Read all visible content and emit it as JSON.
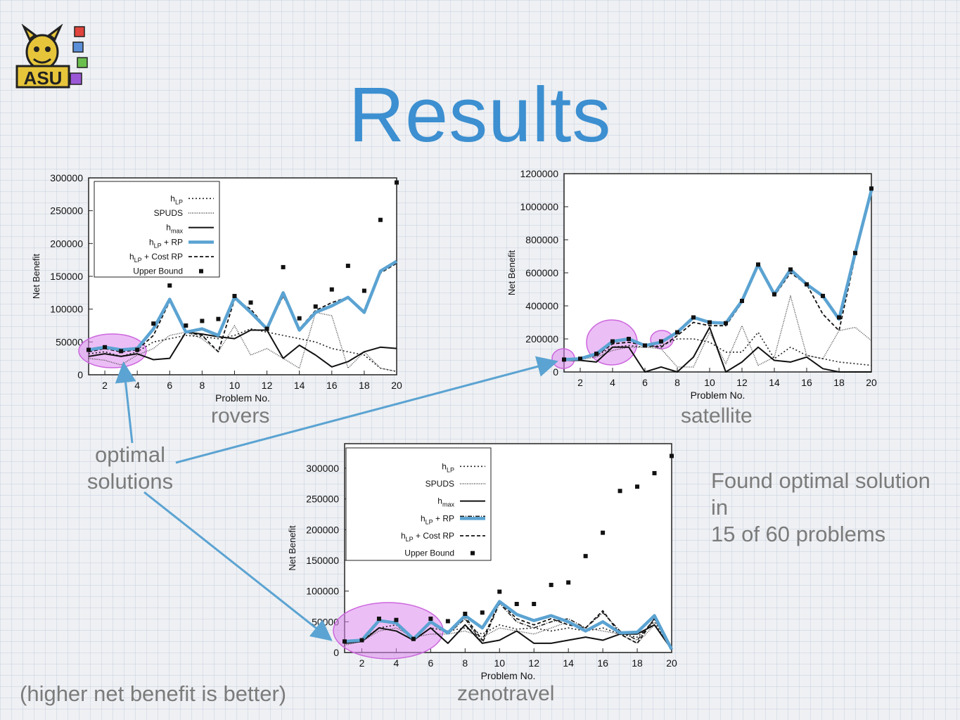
{
  "title": "Results",
  "captions": {
    "rovers": "rovers",
    "satellite": "satellite",
    "zenotravel": "zenotravel"
  },
  "notes": {
    "optimal_line1": "optimal",
    "optimal_line2": "solutions",
    "found_line1": "Found optimal solution",
    "found_line2": "in",
    "found_line3": "15 of 60 problems",
    "footer": "(higher net benefit is better)"
  },
  "logo": {
    "text": "ASU",
    "icon": "asu-sparky-logo-icon"
  },
  "colors": {
    "title": "#3c8fd0",
    "hlp_rp_series": "#5ba3d2",
    "highlight": "#dd88ee",
    "arrow": "#5ba3d2",
    "text_gray": "#7b7b7b"
  },
  "chart_data": [
    {
      "id": "rovers",
      "type": "line",
      "xlabel": "Problem No.",
      "ylabel": "Net Benefit",
      "xlim": [
        1,
        20
      ],
      "ylim": [
        0,
        300000
      ],
      "xticks": [
        2,
        4,
        6,
        8,
        10,
        12,
        14,
        16,
        18,
        20
      ],
      "yticks": [
        0,
        50000,
        100000,
        150000,
        200000,
        250000,
        300000
      ],
      "x": [
        1,
        2,
        3,
        4,
        5,
        6,
        7,
        8,
        9,
        10,
        11,
        12,
        13,
        14,
        15,
        16,
        17,
        18,
        19,
        20
      ],
      "legend": [
        "hLP",
        "SPUDS",
        "hmax",
        "hLP + RP",
        "hLP + Cost RP",
        "Upper Bound"
      ],
      "series": [
        {
          "name": "hLP",
          "style": "dotted",
          "values": [
            32000,
            35000,
            28000,
            35000,
            50000,
            55000,
            60000,
            58000,
            55000,
            60000,
            70000,
            65000,
            60000,
            55000,
            50000,
            40000,
            35000,
            30000,
            10000,
            5000
          ]
        },
        {
          "name": "SPUDS",
          "style": "finedot",
          "values": [
            25000,
            22000,
            15000,
            30000,
            40000,
            60000,
            65000,
            55000,
            35000,
            75000,
            30000,
            40000,
            25000,
            10000,
            95000,
            90000,
            10000,
            35000,
            10000,
            5000
          ]
        },
        {
          "name": "hmax",
          "style": "solid",
          "values": [
            28000,
            32000,
            28000,
            32000,
            23000,
            25000,
            65000,
            62000,
            58000,
            55000,
            68000,
            68000,
            25000,
            45000,
            30000,
            12000,
            20000,
            35000,
            42000,
            40000
          ]
        },
        {
          "name": "hLP + Cost RP",
          "style": "dashed",
          "values": [
            35000,
            40000,
            35000,
            38000,
            60000,
            112000,
            65000,
            60000,
            35000,
            115000,
            100000,
            70000,
            120000,
            70000,
            98000,
            110000,
            118000,
            95000,
            155000,
            170000
          ]
        },
        {
          "name": "hLP + RP",
          "style": "thick",
          "values": [
            38000,
            42000,
            38000,
            40000,
            70000,
            115000,
            65000,
            70000,
            60000,
            118000,
            95000,
            70000,
            125000,
            68000,
            95000,
            105000,
            118000,
            95000,
            158000,
            173000
          ]
        }
      ],
      "upper_bound": [
        38000,
        42000,
        36000,
        38000,
        78000,
        136000,
        75000,
        82000,
        85000,
        120000,
        110000,
        70000,
        164000,
        86000,
        104000,
        130000,
        166000,
        128000,
        236000,
        293000
      ]
    },
    {
      "id": "satellite",
      "type": "line",
      "xlabel": "Problem No.",
      "ylabel": "Net Benefit",
      "xlim": [
        1,
        20
      ],
      "ylim": [
        0,
        1200000
      ],
      "xticks": [
        2,
        4,
        6,
        8,
        10,
        12,
        14,
        16,
        18,
        20
      ],
      "yticks": [
        0,
        200000,
        400000,
        600000,
        800000,
        1000000,
        1200000
      ],
      "x": [
        1,
        2,
        3,
        4,
        5,
        6,
        7,
        8,
        9,
        10,
        11,
        12,
        13,
        14,
        15,
        16,
        17,
        18,
        19,
        20
      ],
      "series": [
        {
          "name": "hLP",
          "style": "dotted",
          "values": [
            75000,
            80000,
            100000,
            150000,
            160000,
            150000,
            160000,
            200000,
            200000,
            180000,
            120000,
            120000,
            240000,
            80000,
            150000,
            100000,
            80000,
            60000,
            50000,
            40000
          ]
        },
        {
          "name": "SPUDS",
          "style": "finedot",
          "values": [
            70000,
            75000,
            90000,
            130000,
            150000,
            150000,
            140000,
            30000,
            30000,
            240000,
            50000,
            280000,
            40000,
            90000,
            460000,
            100000,
            80000,
            250000,
            270000,
            190000
          ]
        },
        {
          "name": "hmax",
          "style": "solid",
          "values": [
            70000,
            70000,
            60000,
            150000,
            150000,
            0,
            30000,
            0,
            90000,
            270000,
            0,
            60000,
            150000,
            70000,
            60000,
            90000,
            20000,
            0,
            0,
            0
          ]
        },
        {
          "name": "hLP + Cost RP",
          "style": "dashed",
          "values": [
            75000,
            80000,
            100000,
            170000,
            180000,
            160000,
            150000,
            220000,
            300000,
            280000,
            280000,
            420000,
            640000,
            460000,
            600000,
            530000,
            350000,
            250000,
            700000,
            1100000
          ]
        },
        {
          "name": "hLP + RP",
          "style": "thick",
          "values": [
            75000,
            80000,
            110000,
            185000,
            200000,
            160000,
            180000,
            240000,
            330000,
            300000,
            295000,
            430000,
            650000,
            470000,
            620000,
            530000,
            460000,
            320000,
            720000,
            1100000
          ]
        }
      ],
      "upper_bound": [
        75000,
        80000,
        110000,
        185000,
        200000,
        160000,
        185000,
        240000,
        330000,
        300000,
        295000,
        430000,
        650000,
        470000,
        620000,
        530000,
        460000,
        330000,
        720000,
        1110000
      ]
    },
    {
      "id": "zenotravel",
      "type": "line",
      "xlabel": "Problem No.",
      "ylabel": "Net Benefit",
      "xlim": [
        1,
        20
      ],
      "ylim": [
        0,
        340000
      ],
      "xticks": [
        2,
        4,
        6,
        8,
        10,
        12,
        14,
        16,
        18,
        20
      ],
      "yticks": [
        0,
        50000,
        100000,
        150000,
        200000,
        250000,
        300000
      ],
      "x": [
        1,
        2,
        3,
        4,
        5,
        6,
        7,
        8,
        9,
        10,
        11,
        12,
        13,
        14,
        15,
        16,
        17,
        18,
        19,
        20
      ],
      "legend": [
        "hLP",
        "SPUDS",
        "hmax",
        "hLP + RP",
        "hLP + Cost RP",
        "Upper Bound"
      ],
      "series": [
        {
          "name": "hLP",
          "style": "dotted",
          "values": [
            15000,
            20000,
            40000,
            45000,
            20000,
            40000,
            35000,
            40000,
            30000,
            45000,
            38000,
            40000,
            35000,
            40000,
            35000,
            40000,
            30000,
            25000,
            50000,
            5000
          ]
        },
        {
          "name": "SPUDS",
          "style": "finedot",
          "values": [
            12000,
            18000,
            35000,
            40000,
            25000,
            30000,
            30000,
            35000,
            25000,
            40000,
            35000,
            30000,
            40000,
            50000,
            40000,
            35000,
            30000,
            15000,
            45000,
            5000
          ]
        },
        {
          "name": "hmax",
          "style": "solid",
          "values": [
            15000,
            18000,
            40000,
            35000,
            20000,
            40000,
            15000,
            45000,
            15000,
            20000,
            35000,
            15000,
            15000,
            20000,
            25000,
            20000,
            30000,
            30000,
            45000,
            5000
          ]
        },
        {
          "name": "hLP + RP (dash-dot)",
          "style": "dashdot",
          "values": [
            15000,
            20000,
            50000,
            48000,
            20000,
            50000,
            30000,
            55000,
            15000,
            80000,
            50000,
            40000,
            50000,
            55000,
            40000,
            65000,
            35000,
            20000,
            55000,
            5000
          ]
        },
        {
          "name": "hLP + Cost RP",
          "style": "dashed",
          "values": [
            15000,
            20000,
            52000,
            50000,
            22000,
            48000,
            30000,
            58000,
            20000,
            82000,
            55000,
            45000,
            55000,
            45000,
            40000,
            68000,
            30000,
            15000,
            55000,
            5000
          ]
        },
        {
          "name": "hLP + RP",
          "style": "thick",
          "values": [
            18000,
            20000,
            52000,
            48000,
            22000,
            50000,
            32000,
            60000,
            40000,
            83000,
            62000,
            52000,
            60000,
            50000,
            35000,
            50000,
            32000,
            33000,
            60000,
            5000
          ]
        }
      ],
      "upper_bound": [
        18000,
        20000,
        55000,
        53000,
        22000,
        55000,
        51000,
        63000,
        65000,
        99000,
        79000,
        79000,
        110000,
        114000,
        157000,
        195000,
        263000,
        270000,
        292000,
        320000
      ]
    }
  ]
}
